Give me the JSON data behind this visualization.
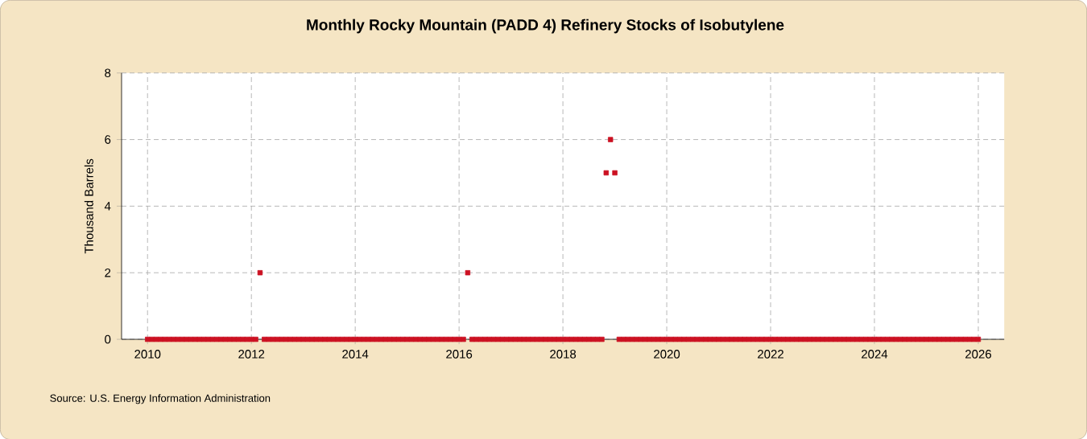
{
  "chart_data": {
    "type": "scatter",
    "title": "Monthly Rocky Mountain (PADD 4) Refinery Stocks of Isobutylene",
    "ylabel": "Thousand Barrels",
    "annotations": [
      "Source: U.S. Energy Information Administration"
    ],
    "xlim": [
      "2009-07",
      "2026-07"
    ],
    "xticks": [
      "2010",
      "2012",
      "2014",
      "2016",
      "2018",
      "2020",
      "2022",
      "2024",
      "2026"
    ],
    "ylim": [
      0,
      8
    ],
    "yticks": [
      0,
      2,
      4,
      6,
      8
    ],
    "grid": true,
    "marker": "square",
    "series": [
      {
        "color": "#cc1122",
        "x": [
          "2010-01",
          "2010-02",
          "2010-03",
          "2010-04",
          "2010-05",
          "2010-06",
          "2010-07",
          "2010-08",
          "2010-09",
          "2010-10",
          "2010-11",
          "2010-12",
          "2011-01",
          "2011-02",
          "2011-03",
          "2011-04",
          "2011-05",
          "2011-06",
          "2011-07",
          "2011-08",
          "2011-09",
          "2011-10",
          "2011-11",
          "2011-12",
          "2012-01",
          "2012-02",
          "2012-03",
          "2012-04",
          "2012-05",
          "2012-06",
          "2012-07",
          "2012-08",
          "2012-09",
          "2012-10",
          "2012-11",
          "2012-12",
          "2013-01",
          "2013-02",
          "2013-03",
          "2013-04",
          "2013-05",
          "2013-06",
          "2013-07",
          "2013-08",
          "2013-09",
          "2013-10",
          "2013-11",
          "2013-12",
          "2014-01",
          "2014-02",
          "2014-03",
          "2014-04",
          "2014-05",
          "2014-06",
          "2014-07",
          "2014-08",
          "2014-09",
          "2014-10",
          "2014-11",
          "2014-12",
          "2015-01",
          "2015-02",
          "2015-03",
          "2015-04",
          "2015-05",
          "2015-06",
          "2015-07",
          "2015-08",
          "2015-09",
          "2015-10",
          "2015-11",
          "2015-12",
          "2016-01",
          "2016-02",
          "2016-03",
          "2016-04",
          "2016-05",
          "2016-06",
          "2016-07",
          "2016-08",
          "2016-09",
          "2016-10",
          "2016-11",
          "2016-12",
          "2017-01",
          "2017-02",
          "2017-03",
          "2017-04",
          "2017-05",
          "2017-06",
          "2017-07",
          "2017-08",
          "2017-09",
          "2017-10",
          "2017-11",
          "2017-12",
          "2018-01",
          "2018-02",
          "2018-03",
          "2018-04",
          "2018-05",
          "2018-06",
          "2018-07",
          "2018-08",
          "2018-09",
          "2018-10",
          "2018-11",
          "2018-12",
          "2019-01",
          "2019-02",
          "2019-03",
          "2019-04",
          "2019-05",
          "2019-06",
          "2019-07",
          "2019-08",
          "2019-09",
          "2019-10",
          "2019-11",
          "2019-12",
          "2020-01",
          "2020-02",
          "2020-03",
          "2020-04",
          "2020-05",
          "2020-06",
          "2020-07",
          "2020-08",
          "2020-09",
          "2020-10",
          "2020-11",
          "2020-12",
          "2021-01",
          "2021-02",
          "2021-03",
          "2021-04",
          "2021-05",
          "2021-06",
          "2021-07",
          "2021-08",
          "2021-09",
          "2021-10",
          "2021-11",
          "2021-12",
          "2022-01",
          "2022-02",
          "2022-03",
          "2022-04",
          "2022-05",
          "2022-06",
          "2022-07",
          "2022-08",
          "2022-09",
          "2022-10",
          "2022-11",
          "2022-12",
          "2023-01",
          "2023-02",
          "2023-03",
          "2023-04",
          "2023-05",
          "2023-06",
          "2023-07",
          "2023-08",
          "2023-09",
          "2023-10",
          "2023-11",
          "2023-12",
          "2024-01",
          "2024-02",
          "2024-03",
          "2024-04",
          "2024-05",
          "2024-06",
          "2024-07",
          "2024-08",
          "2024-09",
          "2024-10",
          "2024-11",
          "2024-12",
          "2025-01",
          "2025-02",
          "2025-03",
          "2025-04",
          "2025-05",
          "2025-06",
          "2025-07",
          "2025-08",
          "2025-09",
          "2025-10",
          "2025-11",
          "2025-12",
          "2026-01"
        ],
        "values": [
          0,
          0,
          0,
          0,
          0,
          0,
          0,
          0,
          0,
          0,
          0,
          0,
          0,
          0,
          0,
          0,
          0,
          0,
          0,
          0,
          0,
          0,
          0,
          0,
          0,
          0,
          2,
          0,
          0,
          0,
          0,
          0,
          0,
          0,
          0,
          0,
          0,
          0,
          0,
          0,
          0,
          0,
          0,
          0,
          0,
          0,
          0,
          0,
          0,
          0,
          0,
          0,
          0,
          0,
          0,
          0,
          0,
          0,
          0,
          0,
          0,
          0,
          0,
          0,
          0,
          0,
          0,
          0,
          0,
          0,
          0,
          0,
          0,
          0,
          2,
          0,
          0,
          0,
          0,
          0,
          0,
          0,
          0,
          0,
          0,
          0,
          0,
          0,
          0,
          0,
          0,
          0,
          0,
          0,
          0,
          0,
          0,
          0,
          0,
          0,
          0,
          0,
          0,
          0,
          0,
          0,
          5,
          6,
          5,
          0,
          0,
          0,
          0,
          0,
          0,
          0,
          0,
          0,
          0,
          0,
          0,
          0,
          0,
          0,
          0,
          0,
          0,
          0,
          0,
          0,
          0,
          0,
          0,
          0,
          0,
          0,
          0,
          0,
          0,
          0,
          0,
          0,
          0,
          0,
          0,
          0,
          0,
          0,
          0,
          0,
          0,
          0,
          0,
          0,
          0,
          0,
          0,
          0,
          0,
          0,
          0,
          0,
          0,
          0,
          0,
          0,
          0,
          0,
          0,
          0,
          0,
          0,
          0,
          0,
          0,
          0,
          0,
          0,
          0,
          0,
          0,
          0,
          0,
          0,
          0,
          0,
          0,
          0,
          0,
          0,
          0,
          0,
          0
        ]
      }
    ]
  }
}
